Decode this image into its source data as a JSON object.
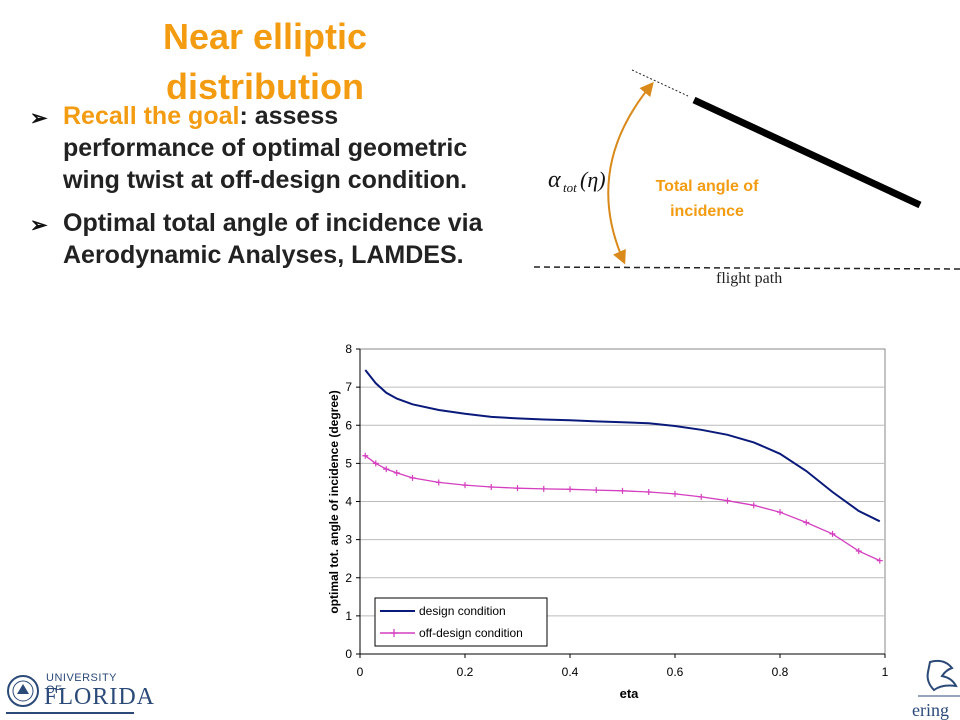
{
  "title": "Near elliptic distribution",
  "bullets": [
    {
      "accent": "Recall  the goal",
      "rest": ": assess performance of optimal geometric wing twist at  off-design condition."
    },
    {
      "accent": "",
      "rest": "Optimal total angle of incidence via Aerodynamic Analyses, LAMDES."
    }
  ],
  "diagram": {
    "symbol": "α",
    "symbol_sub": "tot",
    "symbol_arg": "(η)",
    "label_line1": "Total angle of",
    "label_line2": "incidence",
    "flight_path": "flight path",
    "colors": {
      "arrow": "#d98a1a",
      "label": "#f39c12"
    }
  },
  "logos": {
    "university_line1": "UNIVERSITY OF",
    "university_line2": "FLORIDA",
    "engineering_fragment": "ering"
  },
  "chart_data": {
    "type": "line",
    "xlabel": "eta",
    "ylabel": "optimal tot. angle of incidence (degree)",
    "xlim": [
      0,
      1
    ],
    "ylim": [
      0,
      8
    ],
    "xticks": [
      "0",
      "0.2",
      "0.4",
      "0.6",
      "0.8",
      "1"
    ],
    "yticks": [
      "0",
      "1",
      "2",
      "3",
      "4",
      "5",
      "6",
      "7",
      "8"
    ],
    "grid": "horizontal",
    "legend_position": "bottom-left",
    "x": [
      0.01,
      0.03,
      0.05,
      0.07,
      0.1,
      0.15,
      0.2,
      0.25,
      0.3,
      0.35,
      0.4,
      0.45,
      0.5,
      0.55,
      0.6,
      0.65,
      0.7,
      0.75,
      0.8,
      0.85,
      0.9,
      0.95,
      0.99
    ],
    "series": [
      {
        "name": "design condition",
        "color": "#0a1a7a",
        "marker": "none",
        "values": [
          7.45,
          7.1,
          6.85,
          6.7,
          6.55,
          6.4,
          6.3,
          6.22,
          6.18,
          6.15,
          6.13,
          6.1,
          6.08,
          6.05,
          5.98,
          5.88,
          5.75,
          5.55,
          5.25,
          4.8,
          4.25,
          3.75,
          3.48
        ]
      },
      {
        "name": "off-design condition",
        "color": "#d43fbf",
        "marker": "plus",
        "values": [
          5.2,
          5.0,
          4.85,
          4.75,
          4.62,
          4.5,
          4.43,
          4.38,
          4.35,
          4.33,
          4.32,
          4.3,
          4.28,
          4.25,
          4.2,
          4.12,
          4.02,
          3.9,
          3.72,
          3.45,
          3.15,
          2.7,
          2.45
        ]
      }
    ]
  }
}
